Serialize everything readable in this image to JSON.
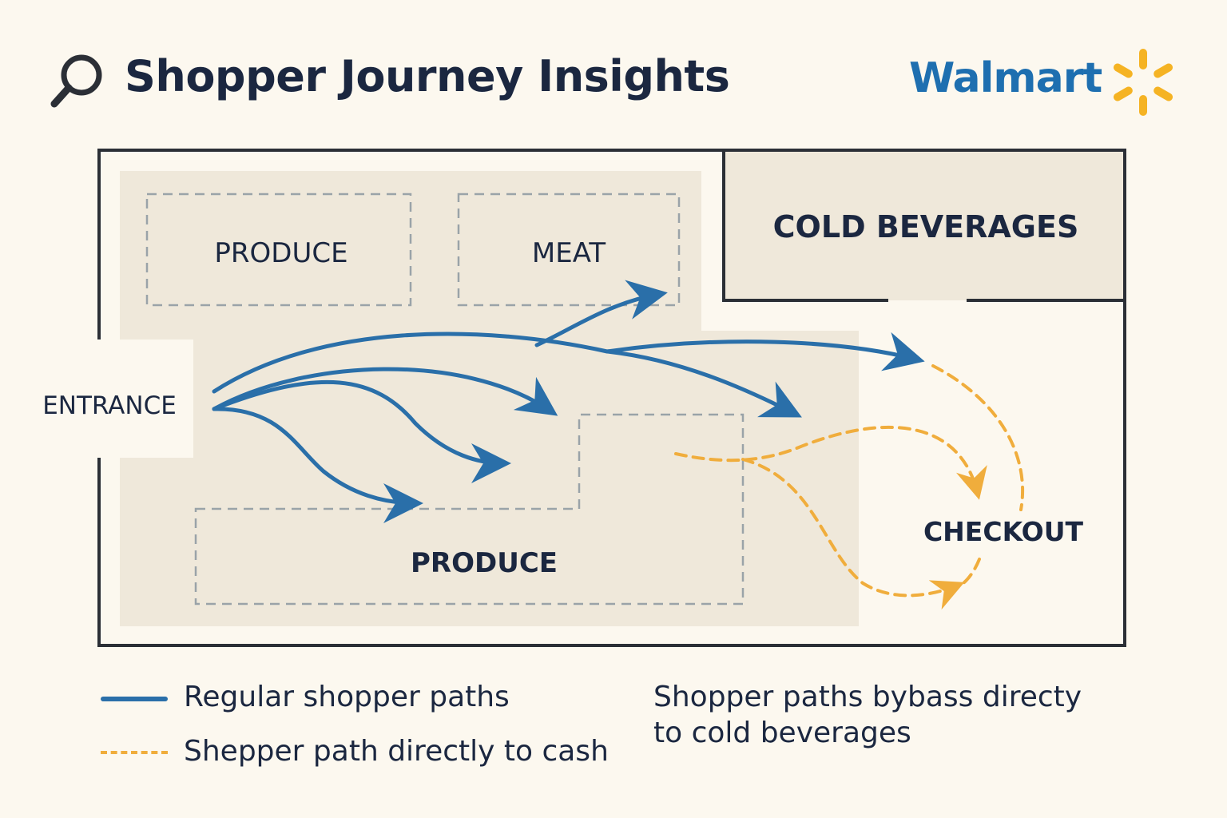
{
  "header": {
    "title": "Shopper Journey Insights",
    "brand": "Walmart"
  },
  "icons": {
    "search": "search-icon",
    "brand_spark": "spark-icon"
  },
  "colors": {
    "background": "#fcf8ef",
    "floor": "#efe8da",
    "wall": "#2b2f36",
    "regular_path": "#2a6fa9",
    "direct_path": "#f0ad3c",
    "zone_outline": "#9aa3a8",
    "brand_blue": "#1e6fb0",
    "brand_yellow": "#f5b323"
  },
  "zones": {
    "produce_top": "PRODUCE",
    "meat": "MEAT",
    "cold_beverages": "COLD BEVERAGES",
    "entrance": "ENTRANCE",
    "checkout": "CHECKOUT",
    "produce_bottom": "PRODUCE"
  },
  "legend": {
    "regular": "Regular shopper paths",
    "direct": "Shepper path directly to cash",
    "note_line1": "Shopper paths bybass  directy",
    "note_line2": "to cold beverages"
  }
}
